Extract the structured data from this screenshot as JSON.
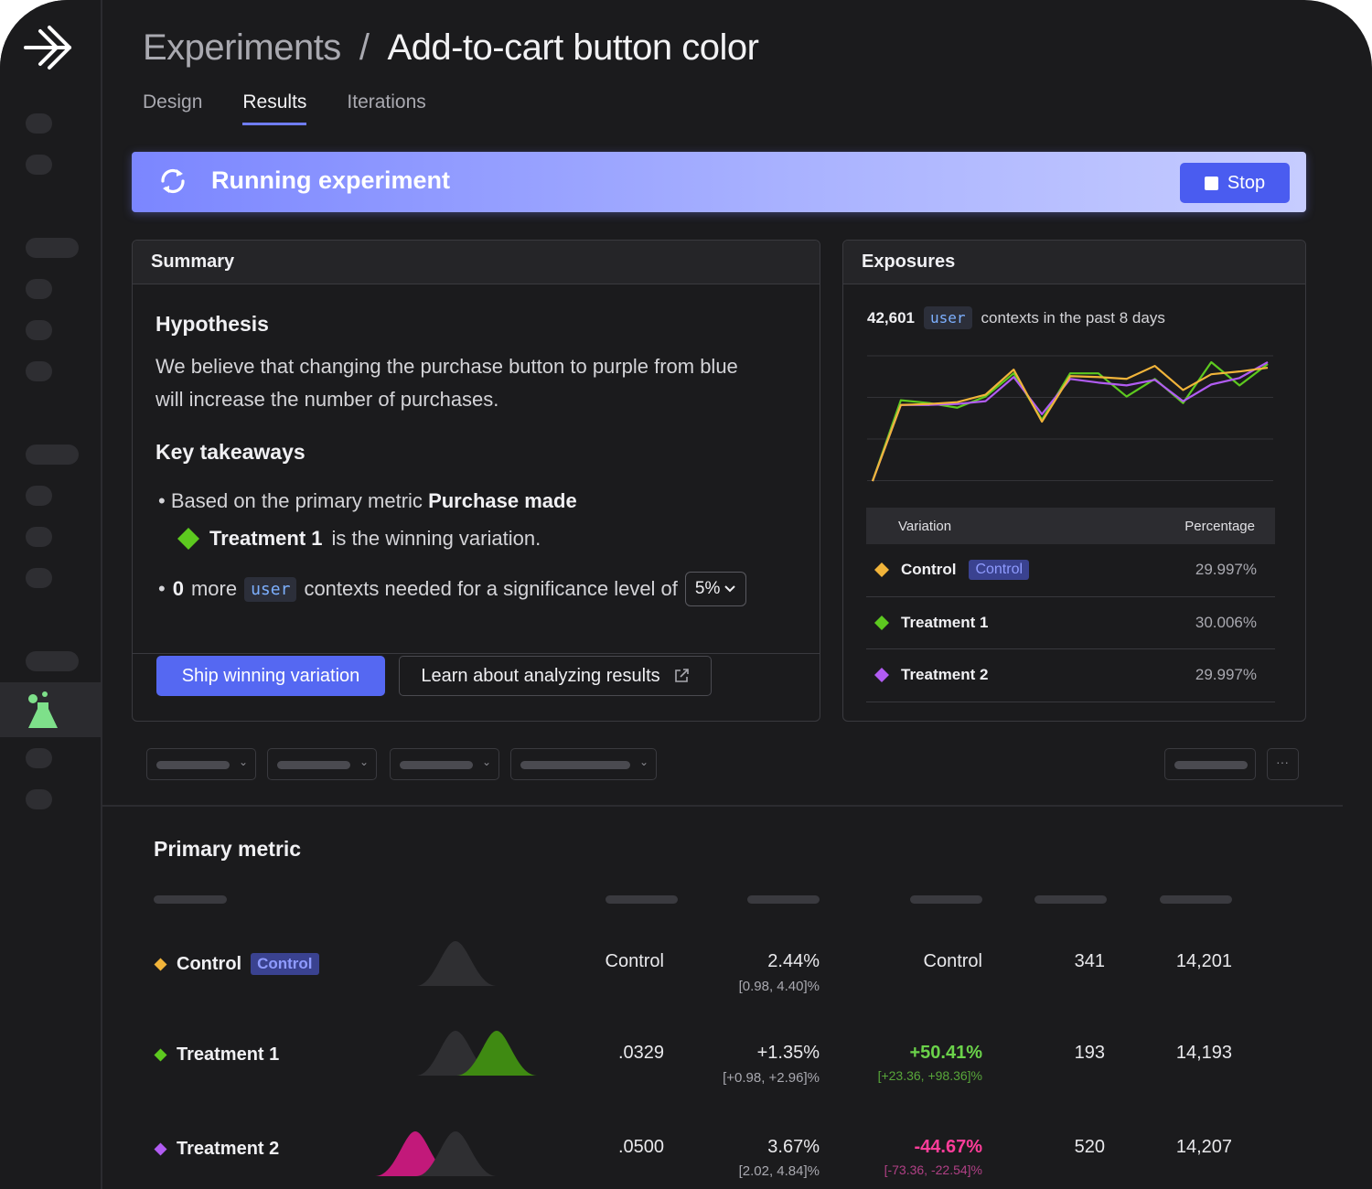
{
  "colors": {
    "accent": "#5568f2",
    "control": "#f1b43a",
    "treatment1": "#5dc91f",
    "treatment2": "#b15cf2",
    "positive": "#6bd34a",
    "negative": "#ff3d9a"
  },
  "header": {
    "crumb": "Experiments",
    "separator": "/",
    "current": "Add-to-cart button color"
  },
  "tabs": [
    {
      "label": "Design"
    },
    {
      "label": "Results"
    },
    {
      "label": "Iterations"
    }
  ],
  "banner": {
    "icon": "sync-icon",
    "text": "Running experiment",
    "stop_label": "Stop"
  },
  "summary": {
    "title": "Summary",
    "hypothesis_heading": "Hypothesis",
    "hypothesis_text": "We believe that changing the purchase button to purple from blue will increase the number of purchases.",
    "takeaways_heading": "Key takeaways",
    "takeaway1_prefix": "Based on the primary metric",
    "takeaway1_metric": "Purchase made",
    "winner_name": "Treatment 1",
    "winner_suffix": "is the winning variation.",
    "takeaway2_count": "0",
    "takeaway2_more": "more",
    "context_kind": "user",
    "takeaway2_suffix": "contexts needed for a significance level of",
    "significance": "5%",
    "ship_label": "Ship winning variation",
    "learn_label": "Learn about analyzing results"
  },
  "exposures": {
    "title": "Exposures",
    "count": "42,601",
    "context_kind": "user",
    "suffix": "contexts in the past 8 days",
    "table_head": {
      "variation": "Variation",
      "percentage": "Percentage"
    },
    "rows": [
      {
        "name": "Control",
        "chip": "Control",
        "pct": "29.997%"
      },
      {
        "name": "Treatment 1",
        "pct": "30.006%"
      },
      {
        "name": "Treatment 2",
        "pct": "29.997%"
      }
    ]
  },
  "chart_data": {
    "type": "line",
    "title": "",
    "xlabel": "",
    "ylabel": "",
    "grid": true,
    "series": [
      {
        "color": "#5dc91f",
        "values": [
          0,
          87,
          84,
          79,
          91,
          116,
          66,
          116,
          116,
          91,
          110,
          84,
          128,
          103,
          126
        ]
      },
      {
        "color": "#b15cf2",
        "values": [
          0,
          82,
          82,
          83,
          86,
          112,
          72,
          110,
          106,
          103,
          109,
          86,
          104,
          111,
          128
        ]
      },
      {
        "color": "#f1b43a",
        "values": [
          0,
          82,
          83,
          85,
          93,
          120,
          64,
          113,
          112,
          110,
          124,
          98,
          115,
          118,
          122
        ]
      }
    ]
  },
  "primary_metric": {
    "title": "Primary metric",
    "rows": [
      {
        "name": "Control",
        "chip": "Control",
        "c1": "Control",
        "c2": "2.44%",
        "c2_sub": "[0.98, 4.40]%",
        "c3": "Control",
        "c3_sub": "",
        "c4": "341",
        "c5": "14,201"
      },
      {
        "name": "Treatment 1",
        "c1": ".0329",
        "c2": "+1.35%",
        "c2_sub": "[+0.98, +2.96]%",
        "c3": "+50.41%",
        "c3_sub": "[+23.36, +98.36]%",
        "c4": "193",
        "c5": "14,193"
      },
      {
        "name": "Treatment 2",
        "c1": ".0500",
        "c2": "3.67%",
        "c2_sub": "[2.02, 4.84]%",
        "c3": "-44.67%",
        "c3_sub": "[-73.36, -22.54]%",
        "c4": "520",
        "c5": "14,207"
      }
    ]
  }
}
